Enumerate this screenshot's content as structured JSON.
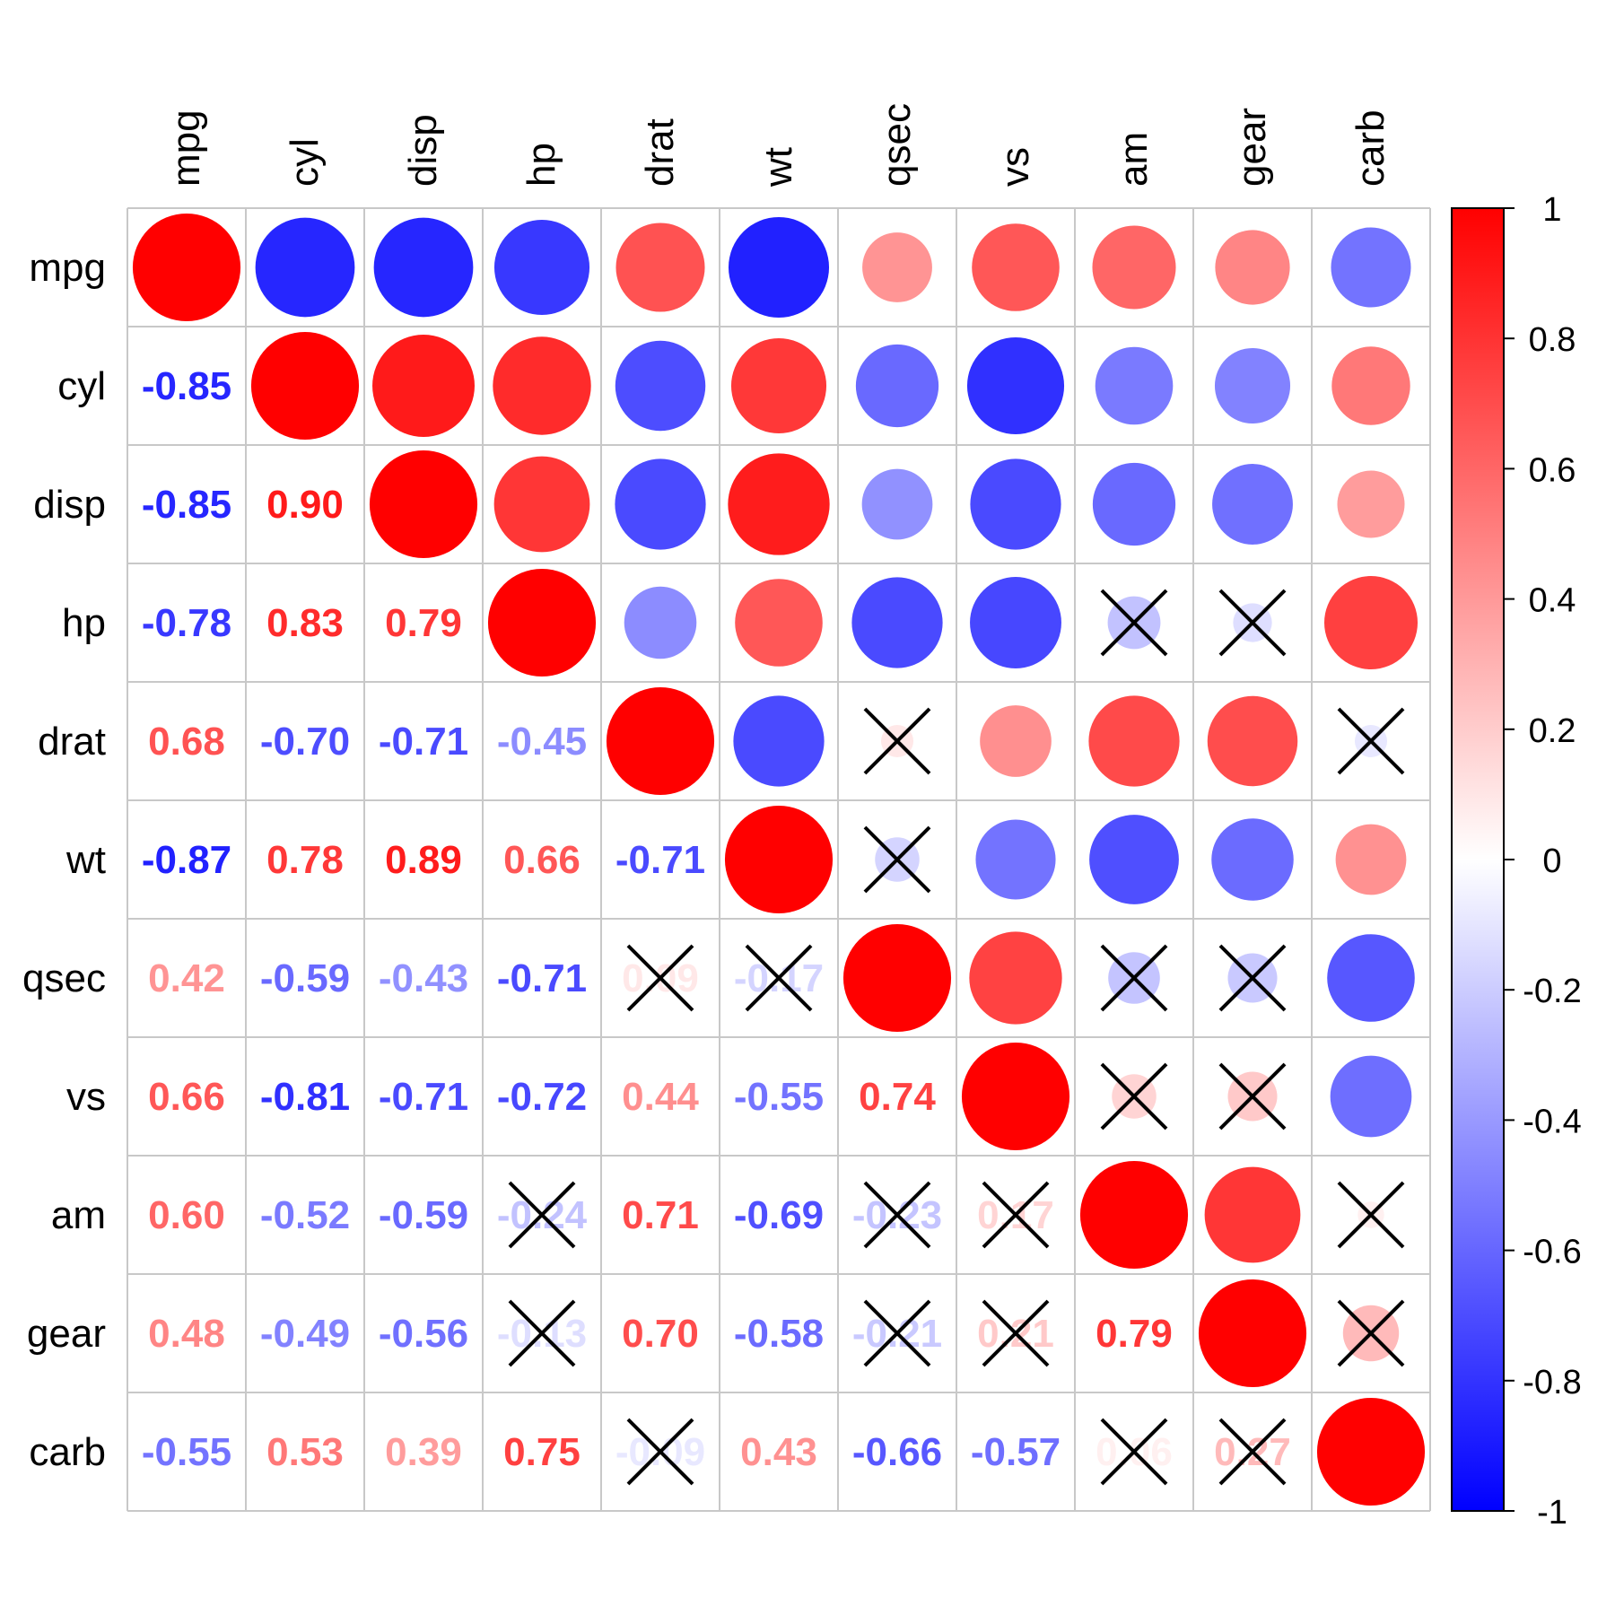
{
  "chart_data": {
    "type": "heatmap",
    "variables": [
      "mpg",
      "cyl",
      "disp",
      "hp",
      "drat",
      "wt",
      "qsec",
      "vs",
      "am",
      "gear",
      "carb"
    ],
    "matrix": [
      [
        1.0,
        -0.85,
        -0.85,
        -0.78,
        0.68,
        -0.87,
        0.42,
        0.66,
        0.6,
        0.48,
        -0.55
      ],
      [
        -0.85,
        1.0,
        0.9,
        0.83,
        -0.7,
        0.78,
        -0.59,
        -0.81,
        -0.52,
        -0.49,
        0.53
      ],
      [
        -0.85,
        0.9,
        1.0,
        0.79,
        -0.71,
        0.89,
        -0.43,
        -0.71,
        -0.59,
        -0.56,
        0.39
      ],
      [
        -0.78,
        0.83,
        0.79,
        1.0,
        -0.45,
        0.66,
        -0.71,
        -0.72,
        -0.24,
        -0.13,
        0.75
      ],
      [
        0.68,
        -0.7,
        -0.71,
        -0.45,
        1.0,
        -0.71,
        0.09,
        0.44,
        0.71,
        0.7,
        -0.09
      ],
      [
        -0.87,
        0.78,
        0.89,
        0.66,
        -0.71,
        1.0,
        -0.17,
        -0.55,
        -0.69,
        -0.58,
        0.43
      ],
      [
        0.42,
        -0.59,
        -0.43,
        -0.71,
        0.09,
        -0.17,
        1.0,
        0.74,
        -0.23,
        -0.21,
        -0.66
      ],
      [
        0.66,
        -0.81,
        -0.71,
        -0.72,
        0.44,
        -0.55,
        0.74,
        1.0,
        0.17,
        0.21,
        -0.57
      ],
      [
        0.6,
        -0.52,
        -0.59,
        -0.24,
        0.71,
        -0.69,
        -0.23,
        0.17,
        1.0,
        0.79,
        0.06
      ],
      [
        0.48,
        -0.49,
        -0.56,
        -0.13,
        0.7,
        -0.58,
        -0.21,
        0.21,
        0.79,
        1.0,
        0.27
      ],
      [
        -0.55,
        0.53,
        0.39,
        0.75,
        -0.09,
        0.43,
        -0.66,
        -0.57,
        0.06,
        0.27,
        1.0
      ]
    ],
    "non_significant_pairs": [
      [
        "hp",
        "am"
      ],
      [
        "hp",
        "gear"
      ],
      [
        "drat",
        "qsec"
      ],
      [
        "drat",
        "carb"
      ],
      [
        "wt",
        "qsec"
      ],
      [
        "qsec",
        "am"
      ],
      [
        "qsec",
        "gear"
      ],
      [
        "vs",
        "am"
      ],
      [
        "vs",
        "gear"
      ],
      [
        "gear",
        "carb"
      ],
      [
        "am",
        "carb"
      ]
    ],
    "upper_triangle": "circle",
    "lower_triangle": "number",
    "colorbar": {
      "range": [
        -1,
        1
      ],
      "ticks": [
        "1",
        "0.8",
        "0.6",
        "0.4",
        "0.2",
        "0",
        "-0.2",
        "-0.4",
        "-0.6",
        "-0.8",
        "-1"
      ],
      "colors": [
        "#0000FF",
        "#FFFFFF",
        "#FF0000"
      ],
      "placement": "right"
    },
    "grid": true
  }
}
